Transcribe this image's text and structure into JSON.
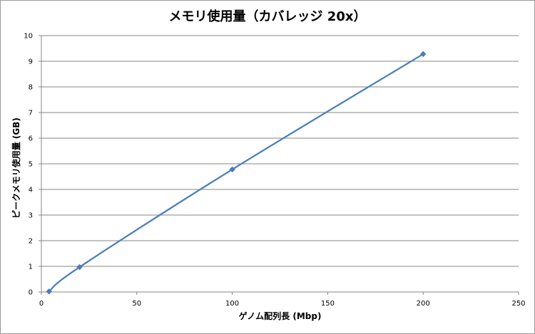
{
  "chart_data": {
    "type": "line",
    "title": "メモリ使用量（カバレッジ 20x）",
    "xlabel": "ゲノム配列長 (Mbp)",
    "ylabel": "ピークメモリ使用量 (GB)",
    "xlim": [
      0,
      250
    ],
    "ylim": [
      0,
      10
    ],
    "xticks": [
      0,
      50,
      100,
      150,
      200,
      250
    ],
    "yticks": [
      0,
      1,
      2,
      3,
      4,
      5,
      6,
      7,
      8,
      9,
      10
    ],
    "grid": "horizontal",
    "legend": "none",
    "series": [
      {
        "color": "#4a7ebb",
        "marker": "diamond",
        "x": [
          4,
          20,
          100,
          200
        ],
        "y": [
          0.02,
          0.97,
          4.78,
          9.28
        ]
      }
    ]
  }
}
